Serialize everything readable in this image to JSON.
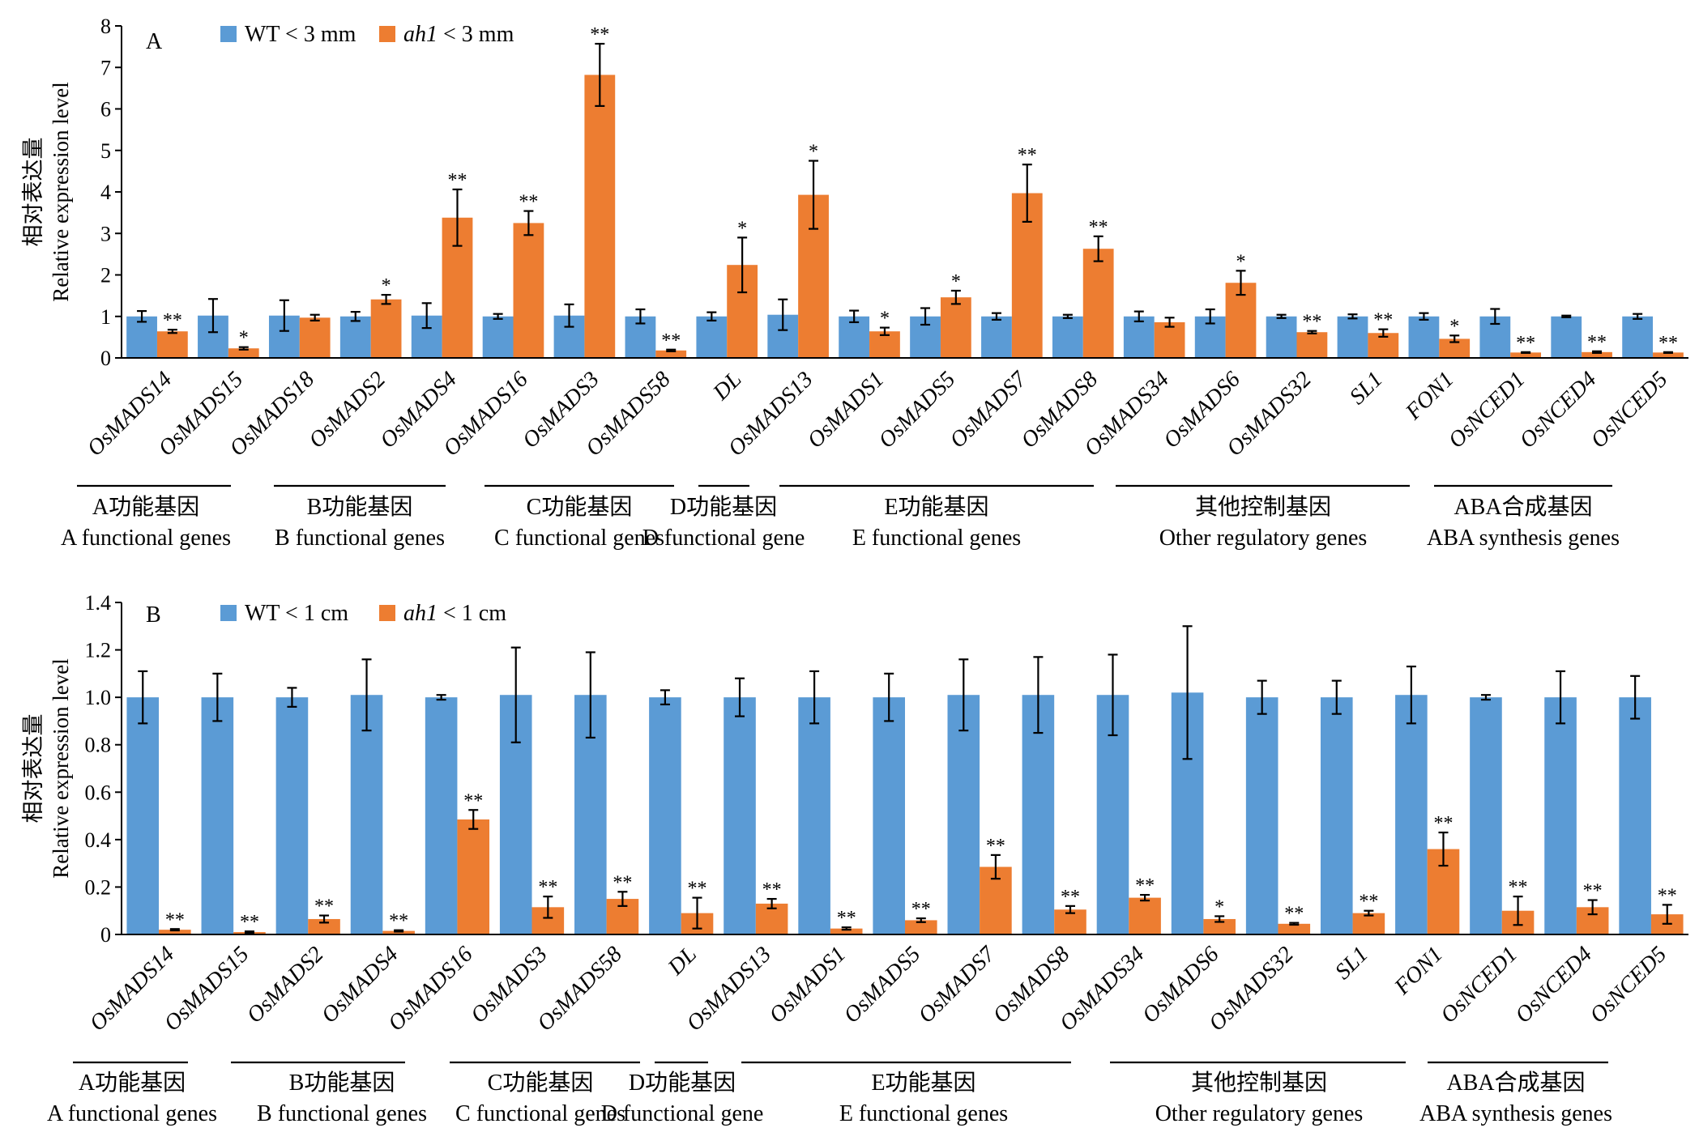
{
  "colors": {
    "wt": "#5b9bd5",
    "mut": "#ed7d31",
    "axis": "#000000"
  },
  "legend_swatch_icons": [
    "blue-square-icon",
    "orange-square-icon"
  ],
  "chart_data": [
    {
      "type": "bar",
      "panel": "A",
      "title": "",
      "ylabel_cn": "相对表达量",
      "ylabel_en": "Relative expression level",
      "ylim": [
        0,
        8
      ],
      "yticks": [
        "0",
        "1",
        "2",
        "3",
        "4",
        "5",
        "6",
        "7",
        "8"
      ],
      "grid": false,
      "legend_position": "top-left",
      "legend_labels": [
        {
          "pre": "WT",
          "italic": "",
          "post": " < 3 mm"
        },
        {
          "pre": "",
          "italic": "ah1",
          "post": " < 3 mm"
        }
      ],
      "categories": [
        "OsMADS14",
        "OsMADS15",
        "OsMADS18",
        "OsMADS2",
        "OsMADS4",
        "OsMADS16",
        "OsMADS3",
        "OsMADS58",
        "DL",
        "OsMADS13",
        "OsMADS1",
        "OsMADS5",
        "OsMADS7",
        "OsMADS8",
        "OsMADS34",
        "OsMADS6",
        "OsMADS32",
        "SL1",
        "FON1",
        "OsNCED1",
        "OsNCED4",
        "OsNCED5"
      ],
      "series": [
        {
          "name": "WT < 3 mm",
          "values": [
            1.0,
            1.02,
            1.02,
            1.0,
            1.02,
            1.0,
            1.02,
            1.0,
            1.0,
            1.04,
            1.0,
            1.0,
            1.0,
            1.0,
            1.0,
            1.0,
            1.0,
            1.0,
            1.0,
            1.0,
            1.0,
            1.0
          ],
          "errors": [
            0.13,
            0.4,
            0.37,
            0.11,
            0.3,
            0.06,
            0.27,
            0.17,
            0.1,
            0.37,
            0.14,
            0.2,
            0.08,
            0.04,
            0.12,
            0.17,
            0.04,
            0.05,
            0.08,
            0.18,
            0.02,
            0.06
          ]
        },
        {
          "name": "ah1 < 3 mm",
          "values": [
            0.64,
            0.23,
            0.97,
            1.41,
            3.38,
            3.25,
            6.82,
            0.18,
            2.24,
            3.93,
            0.64,
            1.46,
            3.97,
            2.63,
            0.86,
            1.81,
            0.62,
            0.6,
            0.46,
            0.13,
            0.14,
            0.13
          ],
          "errors": [
            0.04,
            0.03,
            0.07,
            0.11,
            0.68,
            0.29,
            0.75,
            0.02,
            0.66,
            0.82,
            0.09,
            0.16,
            0.69,
            0.3,
            0.11,
            0.29,
            0.03,
            0.09,
            0.08,
            0.01,
            0.02,
            0.01
          ]
        }
      ],
      "significance": [
        "**",
        "*",
        "",
        "*",
        "**",
        "**",
        "**",
        "**",
        "*",
        "*",
        "*",
        "*",
        "**",
        "**",
        "",
        "*",
        "**",
        "**",
        "*",
        "**",
        "**",
        "**"
      ],
      "groups": [
        {
          "cn": "A功能基因",
          "en": "A functional genes",
          "start": 0,
          "end": 1
        },
        {
          "cn": "B功能基因",
          "en": "B functional genes",
          "start": 2,
          "end": 4
        },
        {
          "cn": "C功能基因",
          "en": "C functional genes",
          "start": 5,
          "end": 7
        },
        {
          "cn": "D功能基因",
          "en": "D functional gene",
          "start": 8,
          "end": 8
        },
        {
          "cn": "E功能基因",
          "en": "E functional genes",
          "start": 9,
          "end": 13
        },
        {
          "cn": "其他控制基因",
          "en": "Other regulatory genes",
          "start": 14,
          "end": 18
        },
        {
          "cn": "ABA合成基因",
          "en": "ABA synthesis  genes",
          "start": 19,
          "end": 21
        }
      ]
    },
    {
      "type": "bar",
      "panel": "B",
      "title": "",
      "ylabel_cn": "相对表达量",
      "ylabel_en": "Relative expression level",
      "ylim": [
        0,
        1.4
      ],
      "yticks": [
        "0",
        "0.2",
        "0.4",
        "0.6",
        "0.8",
        "1.0",
        "1.2",
        "1.4"
      ],
      "grid": false,
      "legend_position": "top-left",
      "legend_labels": [
        {
          "pre": "WT",
          "italic": "",
          "post": " < 1 cm"
        },
        {
          "pre": "",
          "italic": "ah1",
          "post": " < 1 cm"
        }
      ],
      "categories": [
        "OsMADS14",
        "OsMADS15",
        "OsMADS2",
        "OsMADS4",
        "OsMADS16",
        "OsMADS3",
        "OsMADS58",
        "DL",
        "OsMADS13",
        "OsMADS1",
        "OsMADS5",
        "OsMADS7",
        "OsMADS8",
        "OsMADS34",
        "OsMADS6",
        "OsMADS32",
        "SL1",
        "FON1",
        "OsNCED1",
        "OsNCED4",
        "OsNCED5"
      ],
      "series": [
        {
          "name": "WT < 1 cm",
          "values": [
            1.0,
            1.0,
            1.0,
            1.01,
            1.0,
            1.01,
            1.01,
            1.0,
            1.0,
            1.0,
            1.0,
            1.01,
            1.01,
            1.01,
            1.02,
            1.0,
            1.0,
            1.01,
            1.0,
            1.0,
            1.0
          ],
          "errors": [
            0.11,
            0.1,
            0.04,
            0.15,
            0.01,
            0.2,
            0.18,
            0.03,
            0.08,
            0.11,
            0.1,
            0.15,
            0.16,
            0.17,
            0.28,
            0.07,
            0.07,
            0.12,
            0.01,
            0.11,
            0.09
          ]
        },
        {
          "name": "ah1 < 1 cm",
          "values": [
            0.02,
            0.01,
            0.065,
            0.015,
            0.485,
            0.115,
            0.15,
            0.09,
            0.13,
            0.025,
            0.06,
            0.285,
            0.105,
            0.155,
            0.065,
            0.045,
            0.09,
            0.36,
            0.1,
            0.115,
            0.085
          ],
          "errors": [
            0.003,
            0.003,
            0.015,
            0.003,
            0.04,
            0.045,
            0.03,
            0.065,
            0.02,
            0.005,
            0.008,
            0.05,
            0.015,
            0.012,
            0.012,
            0.004,
            0.01,
            0.07,
            0.06,
            0.03,
            0.04
          ]
        }
      ],
      "significance": [
        "**",
        "**",
        "**",
        "**",
        "**",
        "**",
        "**",
        "**",
        "**",
        "**",
        "**",
        "**",
        "**",
        "**",
        "*",
        "**",
        "**",
        "**",
        "**",
        "**",
        "**"
      ],
      "groups": [
        {
          "cn": "A功能基因",
          "en": "A functional genes",
          "start": 0,
          "end": 1
        },
        {
          "cn": "B功能基因",
          "en": "B functional genes",
          "start": 2,
          "end": 3
        },
        {
          "cn": "C功能基因",
          "en": "C functional genes",
          "start": 4,
          "end": 6
        },
        {
          "cn": "D功能基因",
          "en": "D functional gene",
          "start": 7,
          "end": 7
        },
        {
          "cn": "E功能基因",
          "en": "E functional genes",
          "start": 8,
          "end": 12
        },
        {
          "cn": "其他控制基因",
          "en": "Other regulatory genes",
          "start": 13,
          "end": 17
        },
        {
          "cn": "ABA合成基因",
          "en": "ABA synthesis  genes",
          "start": 18,
          "end": 20
        }
      ]
    }
  ]
}
